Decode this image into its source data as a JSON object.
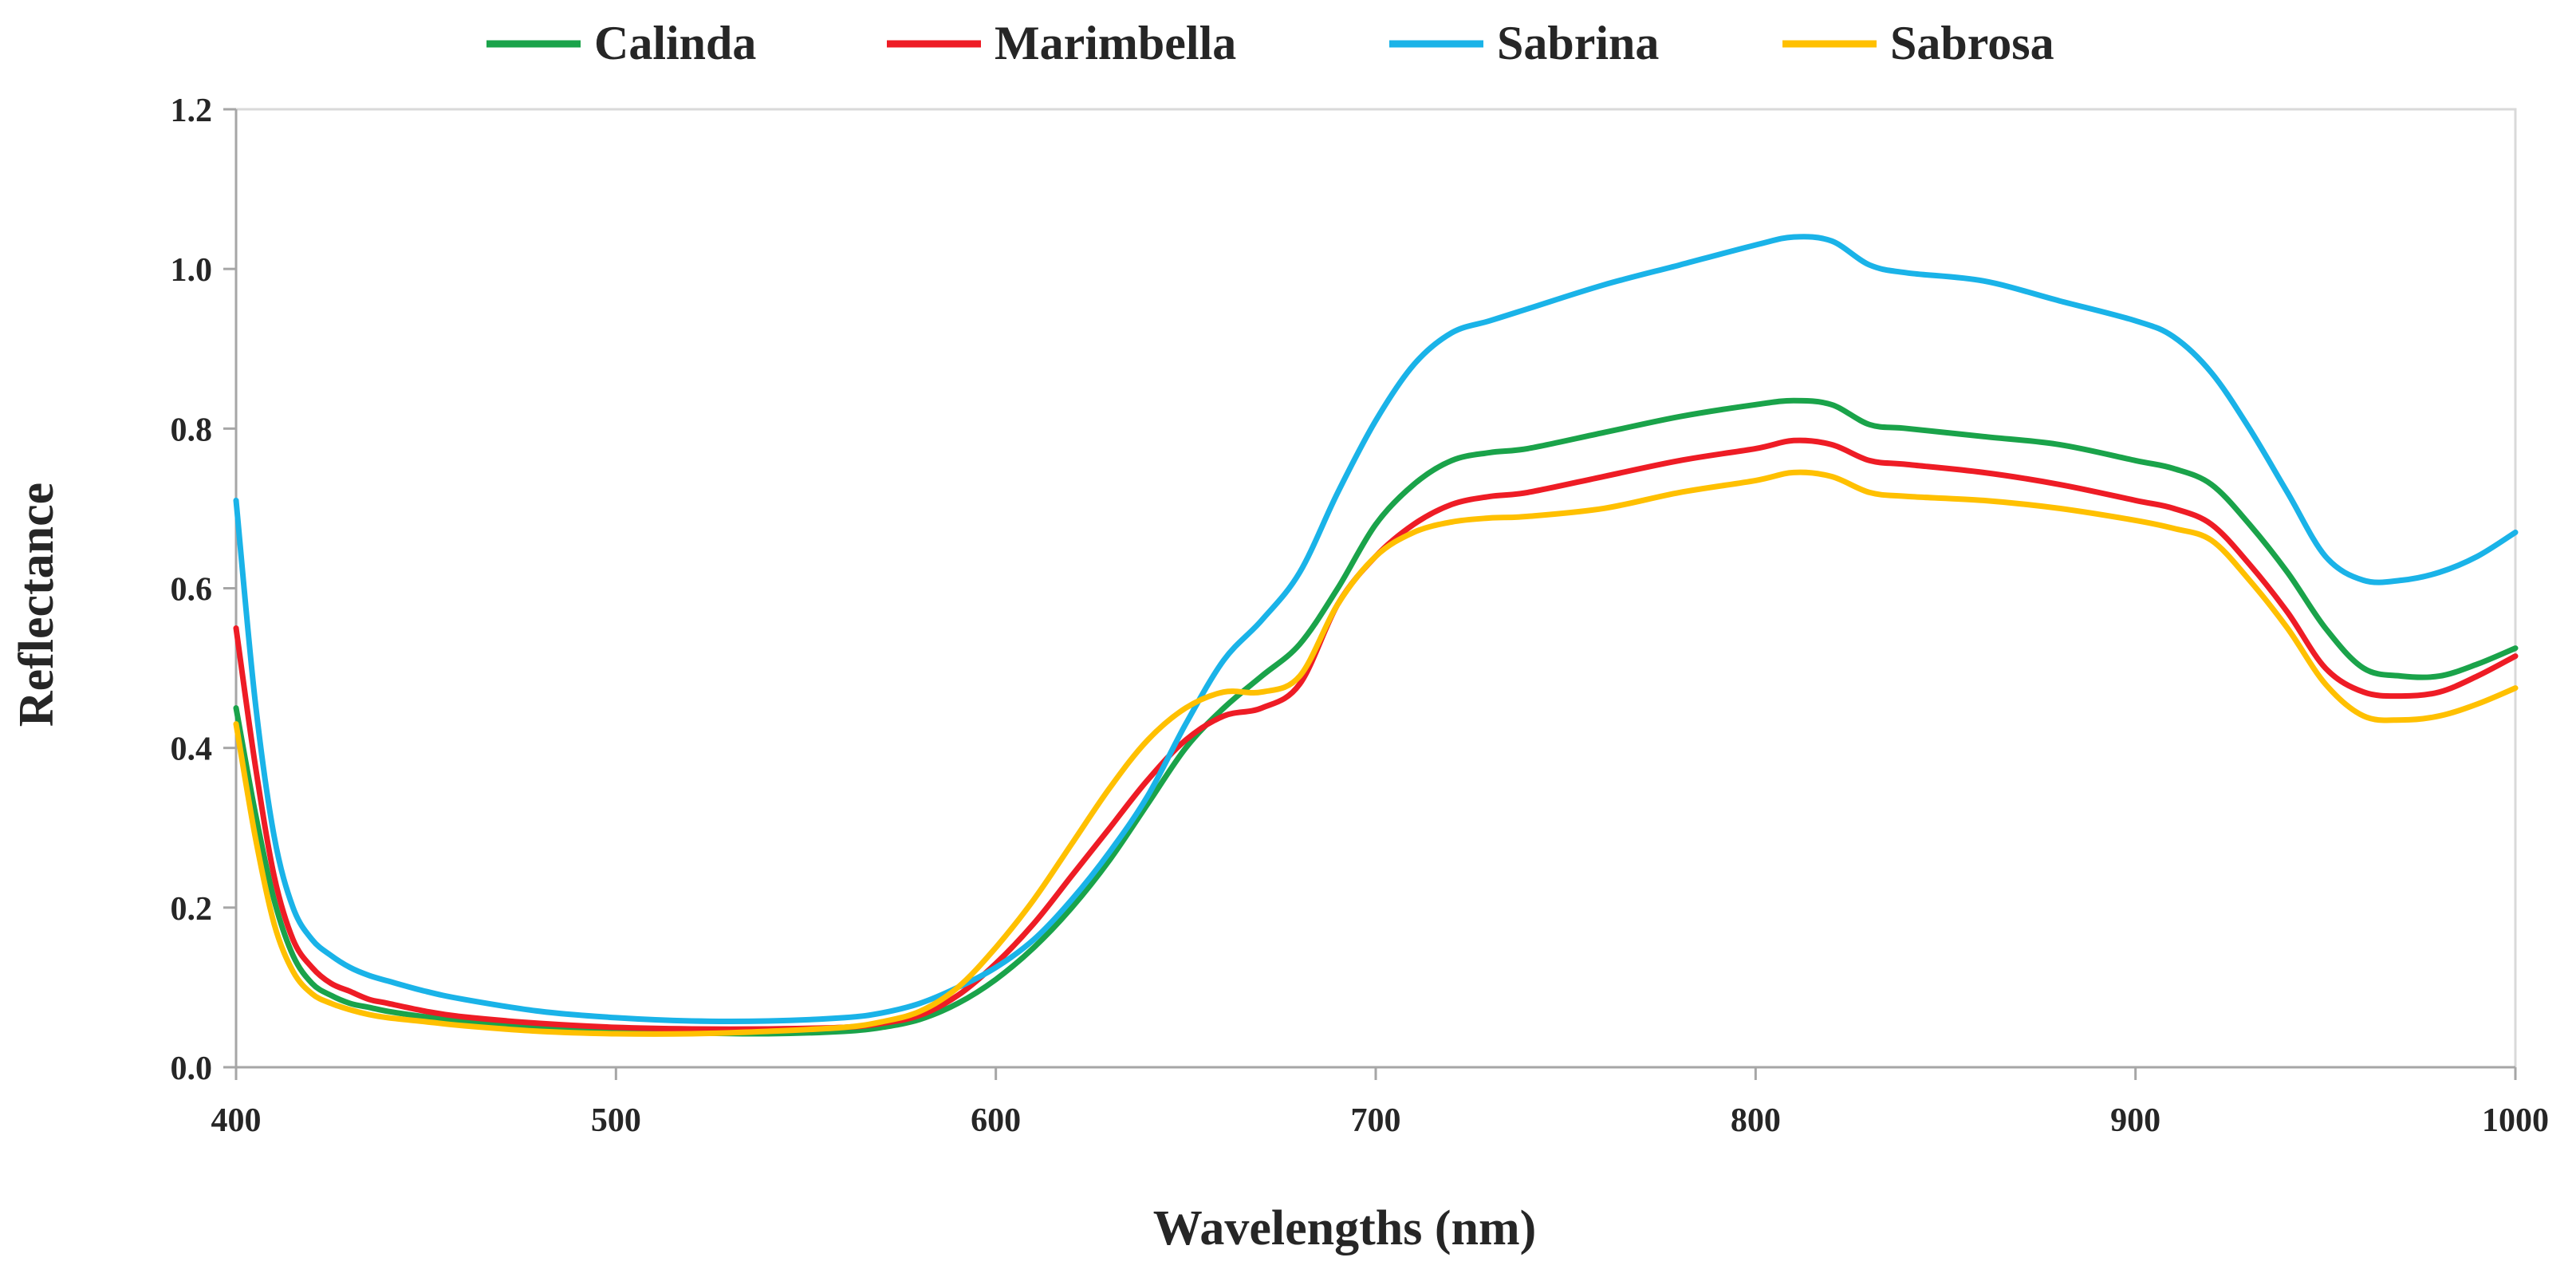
{
  "chart_data": {
    "type": "line",
    "title": "",
    "xlabel": "Wavelengths (nm)",
    "ylabel": "Reflectance",
    "xlim": [
      400,
      1000
    ],
    "ylim": [
      0,
      1.2
    ],
    "x_ticks": [
      400,
      500,
      600,
      700,
      800,
      900,
      1000
    ],
    "x_tick_labels": [
      "400",
      "500",
      "600",
      "700",
      "800",
      "900",
      "1000"
    ],
    "y_ticks": [
      0,
      0.2,
      0.4,
      0.6,
      0.8,
      1.0,
      1.2
    ],
    "y_tick_labels": [
      "0.0",
      "0.2",
      "0.4",
      "0.6",
      "0.8",
      "1.0",
      "1.2"
    ],
    "grid": false,
    "legend_position": "top",
    "x": [
      400,
      405,
      410,
      415,
      420,
      425,
      430,
      435,
      440,
      450,
      460,
      480,
      500,
      520,
      540,
      560,
      570,
      580,
      590,
      600,
      610,
      620,
      630,
      640,
      650,
      660,
      670,
      680,
      690,
      700,
      710,
      720,
      730,
      740,
      760,
      780,
      800,
      810,
      820,
      830,
      840,
      860,
      880,
      900,
      910,
      920,
      930,
      940,
      950,
      960,
      970,
      980,
      990,
      1000
    ],
    "series": [
      {
        "name": "Calinda",
        "color": "#1aa34a",
        "values": [
          0.45,
          0.32,
          0.21,
          0.14,
          0.105,
          0.09,
          0.08,
          0.075,
          0.07,
          0.063,
          0.058,
          0.05,
          0.045,
          0.043,
          0.042,
          0.045,
          0.05,
          0.06,
          0.08,
          0.11,
          0.15,
          0.2,
          0.26,
          0.33,
          0.4,
          0.45,
          0.49,
          0.53,
          0.6,
          0.68,
          0.73,
          0.76,
          0.77,
          0.775,
          0.795,
          0.815,
          0.83,
          0.835,
          0.83,
          0.805,
          0.8,
          0.79,
          0.78,
          0.76,
          0.75,
          0.73,
          0.68,
          0.62,
          0.55,
          0.5,
          0.49,
          0.49,
          0.505,
          0.525
        ]
      },
      {
        "name": "Marimbella",
        "color": "#ee1c25",
        "values": [
          0.55,
          0.38,
          0.24,
          0.16,
          0.125,
          0.105,
          0.095,
          0.085,
          0.08,
          0.07,
          0.063,
          0.055,
          0.05,
          0.048,
          0.048,
          0.05,
          0.055,
          0.065,
          0.09,
          0.13,
          0.18,
          0.24,
          0.3,
          0.36,
          0.41,
          0.44,
          0.45,
          0.48,
          0.58,
          0.64,
          0.68,
          0.705,
          0.715,
          0.72,
          0.74,
          0.76,
          0.775,
          0.785,
          0.78,
          0.76,
          0.755,
          0.745,
          0.73,
          0.71,
          0.7,
          0.68,
          0.63,
          0.57,
          0.5,
          0.47,
          0.465,
          0.47,
          0.49,
          0.515
        ]
      },
      {
        "name": "Sabrina",
        "color": "#1ab3e8",
        "values": [
          0.71,
          0.46,
          0.29,
          0.2,
          0.16,
          0.14,
          0.125,
          0.115,
          0.108,
          0.095,
          0.085,
          0.07,
          0.062,
          0.058,
          0.058,
          0.062,
          0.068,
          0.08,
          0.1,
          0.125,
          0.16,
          0.21,
          0.27,
          0.34,
          0.43,
          0.51,
          0.56,
          0.62,
          0.72,
          0.81,
          0.88,
          0.92,
          0.935,
          0.95,
          0.98,
          1.005,
          1.03,
          1.04,
          1.035,
          1.005,
          0.995,
          0.985,
          0.96,
          0.935,
          0.915,
          0.87,
          0.8,
          0.72,
          0.64,
          0.61,
          0.61,
          0.62,
          0.64,
          0.67
        ]
      },
      {
        "name": "Sabrosa",
        "color": "#ffc000",
        "values": [
          0.43,
          0.29,
          0.18,
          0.12,
          0.092,
          0.08,
          0.072,
          0.066,
          0.062,
          0.057,
          0.052,
          0.045,
          0.042,
          0.042,
          0.045,
          0.05,
          0.057,
          0.07,
          0.1,
          0.15,
          0.21,
          0.28,
          0.35,
          0.41,
          0.45,
          0.47,
          0.47,
          0.49,
          0.58,
          0.64,
          0.67,
          0.683,
          0.688,
          0.69,
          0.7,
          0.72,
          0.735,
          0.745,
          0.74,
          0.72,
          0.715,
          0.71,
          0.7,
          0.685,
          0.675,
          0.66,
          0.61,
          0.55,
          0.48,
          0.44,
          0.435,
          0.44,
          0.455,
          0.475
        ]
      }
    ]
  }
}
